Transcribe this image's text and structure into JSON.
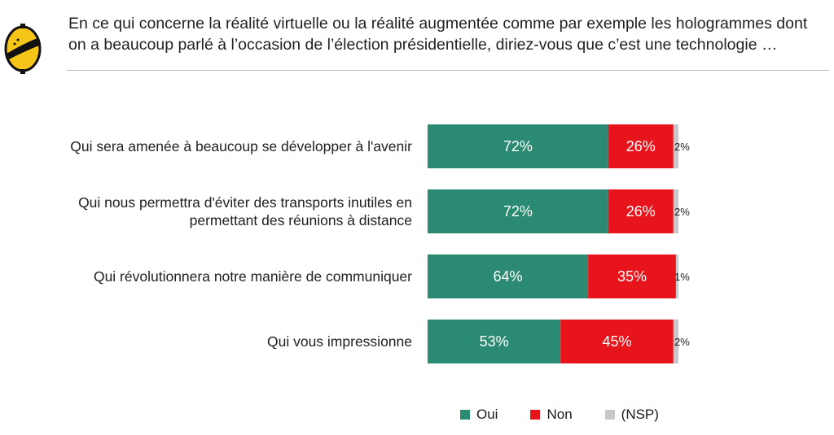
{
  "question": {
    "line1": "En ce qui concerne la réalité virtuelle ou la réalité augmentée comme par exemple les hologrammes dont",
    "line2": "on a beaucoup parlé à l’occasion de l’élection présidentielle, diriez-vous que c’est une technologie …"
  },
  "logo": {
    "icon": "lemon-logo-icon",
    "colors": {
      "fill": "#F5C518",
      "outline": "#111111"
    }
  },
  "chart_data": {
    "type": "bar",
    "orientation": "horizontal",
    "stacked": true,
    "categories": [
      [
        "Qui sera amenée à beaucoup se développer à l'avenir"
      ],
      [
        "Qui nous permettra d'éviter des transports inutiles en",
        "permettant des réunions à distance"
      ],
      [
        "Qui révolutionnera notre manière de communiquer"
      ],
      [
        "Qui vous impressionne"
      ]
    ],
    "series": [
      {
        "name": "Oui",
        "color": "#2B8A72",
        "values": [
          72,
          72,
          64,
          53
        ],
        "labels": [
          "72%",
          "72%",
          "64%",
          "53%"
        ]
      },
      {
        "name": "Non",
        "color": "#E8141B",
        "values": [
          26,
          26,
          35,
          45
        ],
        "labels": [
          "26%",
          "26%",
          "35%",
          "45%"
        ]
      },
      {
        "name": "(NSP)",
        "color": "#C8C8C8",
        "values": [
          2,
          2,
          1,
          2
        ],
        "labels": [
          "2%",
          "2%",
          "1%",
          "2%"
        ]
      }
    ],
    "xlim": [
      0,
      100
    ],
    "grid": false,
    "legend_position": "bottom"
  }
}
